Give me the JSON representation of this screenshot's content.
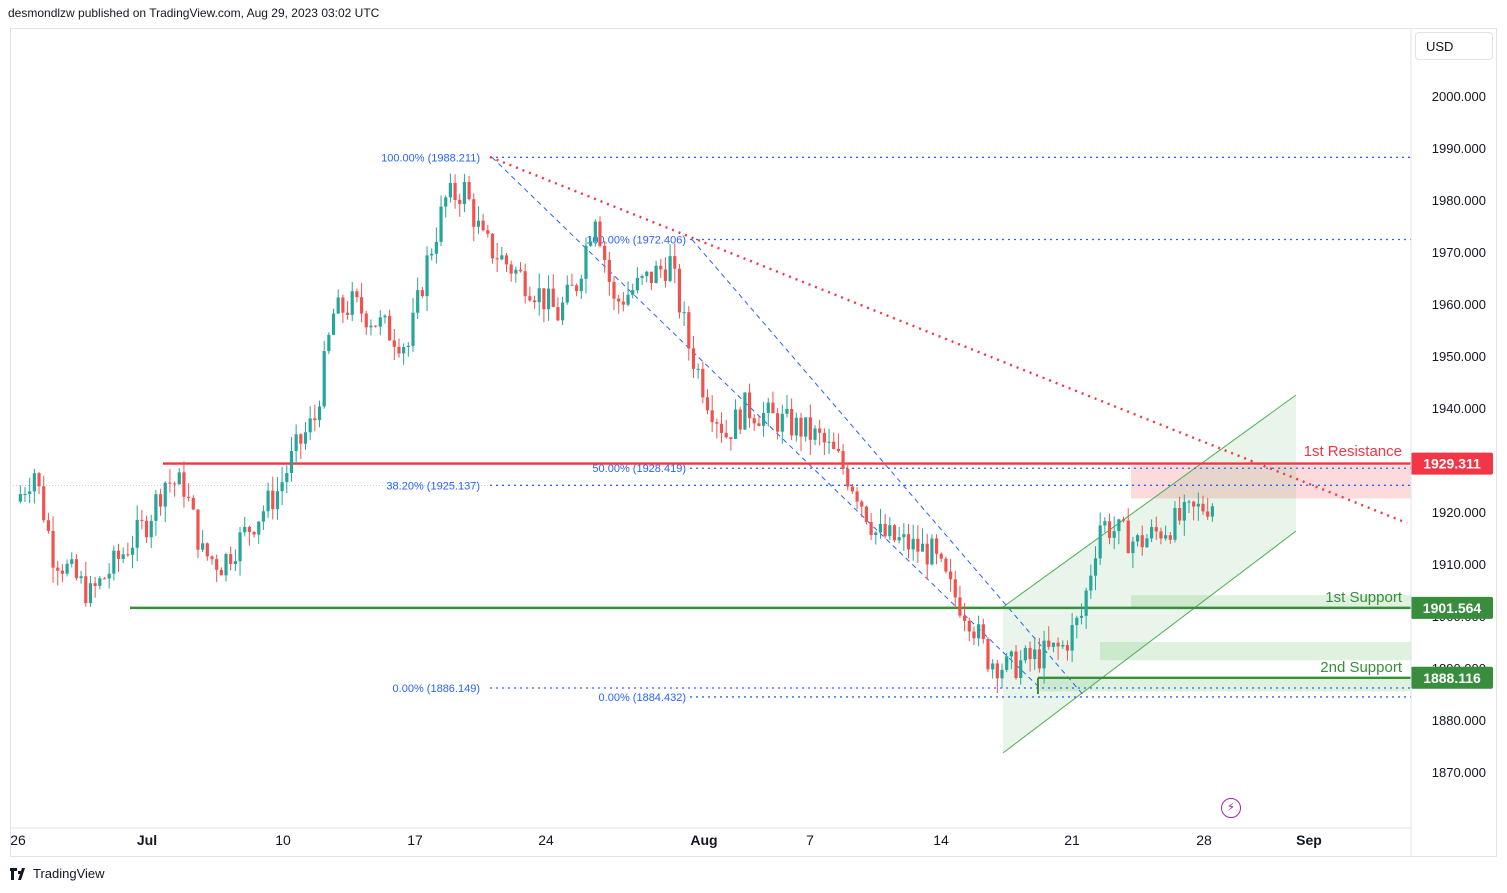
{
  "header": {
    "attribution": "desmondlzw published on TradingView.com, Aug 29, 2023 03:02 UTC"
  },
  "currency": "USD",
  "brand": "TradingView",
  "colors": {
    "up": "#26a69a",
    "down": "#ef5350",
    "resistance": "#f23645",
    "support": "#388e3c",
    "fib": "#2962ff",
    "channel": "#4caf50"
  },
  "chart_data": {
    "type": "candlestick",
    "y_ticks": [
      "2000.000",
      "1990.000",
      "1980.000",
      "1970.000",
      "1960.000",
      "1950.000",
      "1940.000",
      "1920.000",
      "1910.000",
      "1900.000",
      "1890.000",
      "1880.000",
      "1870.000"
    ],
    "y_tick_values": [
      2000,
      1990,
      1980,
      1970,
      1960,
      1950,
      1940,
      1920,
      1910,
      1900,
      1890,
      1880,
      1870
    ],
    "x_ticks": [
      {
        "label": "26",
        "bold": false
      },
      {
        "label": "Jul",
        "bold": true
      },
      {
        "label": "10",
        "bold": false
      },
      {
        "label": "17",
        "bold": false
      },
      {
        "label": "24",
        "bold": false
      },
      {
        "label": "Aug",
        "bold": true
      },
      {
        "label": "7",
        "bold": false
      },
      {
        "label": "14",
        "bold": false
      },
      {
        "label": "21",
        "bold": false
      },
      {
        "label": "28",
        "bold": false
      },
      {
        "label": "Sep",
        "bold": true
      }
    ],
    "price_path": [
      [
        "2023-06-26",
        1922
      ],
      [
        "2023-06-27",
        1928
      ],
      [
        "2023-06-28",
        1912
      ],
      [
        "2023-06-29",
        1908
      ],
      [
        "2023-06-30",
        1904
      ],
      [
        "2023-07-03",
        1918
      ],
      [
        "2023-07-04",
        1926
      ],
      [
        "2023-07-05",
        1925
      ],
      [
        "2023-07-06",
        1912
      ],
      [
        "2023-07-07",
        1910
      ],
      [
        "2023-07-10",
        1924
      ],
      [
        "2023-07-11",
        1932
      ],
      [
        "2023-07-12",
        1938
      ],
      [
        "2023-07-13",
        1958
      ],
      [
        "2023-07-14",
        1960
      ],
      [
        "2023-07-17",
        1952
      ],
      [
        "2023-07-18",
        1968
      ],
      [
        "2023-07-19",
        1980
      ],
      [
        "2023-07-20",
        1982
      ],
      [
        "2023-07-21",
        1972
      ],
      [
        "2023-07-24",
        1962
      ],
      [
        "2023-07-25",
        1958
      ],
      [
        "2023-07-26",
        1964
      ],
      [
        "2023-07-27",
        1978
      ],
      [
        "2023-07-28",
        1960
      ],
      [
        "2023-07-31",
        1968
      ],
      [
        "2023-08-01",
        1952
      ],
      [
        "2023-08-02",
        1942
      ],
      [
        "2023-08-03",
        1935
      ],
      [
        "2023-08-04",
        1940
      ],
      [
        "2023-08-07",
        1936
      ],
      [
        "2023-08-08",
        1934
      ],
      [
        "2023-08-09",
        1930
      ],
      [
        "2023-08-10",
        1924
      ],
      [
        "2023-08-11",
        1916
      ],
      [
        "2023-08-14",
        1912
      ],
      [
        "2023-08-15",
        1905
      ],
      [
        "2023-08-16",
        1900
      ],
      [
        "2023-08-17",
        1892
      ],
      [
        "2023-08-18",
        1890
      ],
      [
        "2023-08-21",
        1894
      ],
      [
        "2023-08-22",
        1900
      ],
      [
        "2023-08-23",
        1918
      ],
      [
        "2023-08-24",
        1916
      ],
      [
        "2023-08-25",
        1914
      ],
      [
        "2023-08-28",
        1920
      ],
      [
        "2023-08-29",
        1922
      ]
    ],
    "horizontal_levels": [
      {
        "name": "1st Resistance",
        "value": 1929.311,
        "label": "1929.311"
      },
      {
        "name": "1st Support",
        "value": 1901.564,
        "label": "1901.564"
      },
      {
        "name": "2nd Support",
        "value": 1888.116,
        "label": "1888.116"
      }
    ],
    "fib_labels": [
      {
        "text": "100.00% (1988.211)",
        "value": 1988.211
      },
      {
        "text": "100.00% (1972.406)",
        "value": 1972.406
      },
      {
        "text": "50.00% (1928.419)",
        "value": 1928.419
      },
      {
        "text": "38.20% (1925.137)",
        "value": 1925.137
      },
      {
        "text": "0.00% (1886.149)",
        "value": 1886.149
      },
      {
        "text": "0.00% (1884.432)",
        "value": 1884.432
      }
    ],
    "zone_labels": {
      "resistance": "1st Resistance",
      "support1": "1st Support",
      "support2": "2nd Support"
    },
    "grid": false,
    "legend": "none"
  }
}
